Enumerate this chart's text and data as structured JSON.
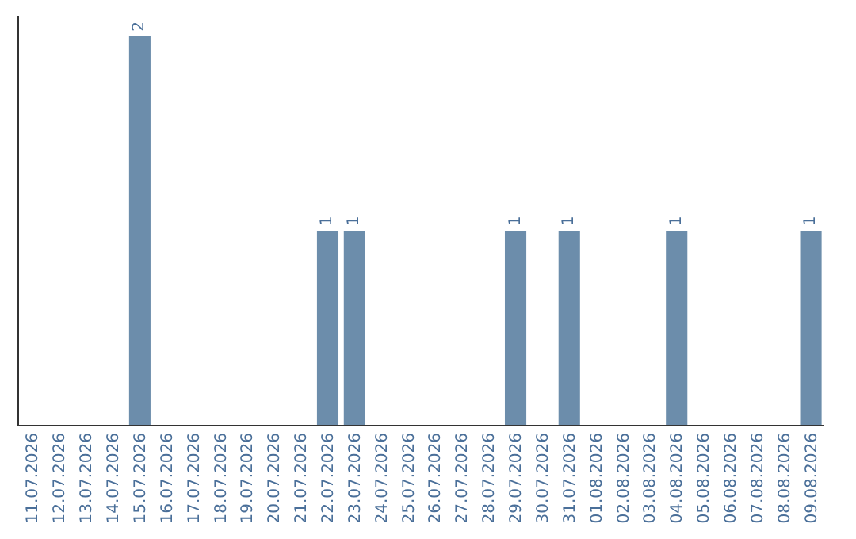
{
  "chart_data": {
    "type": "bar",
    "categories": [
      "11.07.2026",
      "12.07.2026",
      "13.07.2026",
      "14.07.2026",
      "15.07.2026",
      "16.07.2026",
      "17.07.2026",
      "18.07.2026",
      "19.07.2026",
      "20.07.2026",
      "21.07.2026",
      "22.07.2026",
      "23.07.2026",
      "24.07.2026",
      "25.07.2026",
      "26.07.2026",
      "27.07.2026",
      "28.07.2026",
      "29.07.2026",
      "30.07.2026",
      "31.07.2026",
      "01.08.2026",
      "02.08.2026",
      "03.08.2026",
      "04.08.2026",
      "05.08.2026",
      "06.08.2026",
      "07.08.2026",
      "08.08.2026",
      "09.08.2026"
    ],
    "values": [
      0,
      0,
      0,
      0,
      2,
      0,
      0,
      0,
      0,
      0,
      0,
      1,
      1,
      0,
      0,
      0,
      0,
      0,
      1,
      0,
      1,
      0,
      0,
      0,
      1,
      0,
      0,
      0,
      0,
      1
    ],
    "value_labels": [
      null,
      null,
      null,
      null,
      "2",
      null,
      null,
      null,
      null,
      null,
      null,
      "1",
      "1",
      null,
      null,
      null,
      null,
      null,
      "1",
      null,
      "1",
      null,
      null,
      null,
      "1",
      null,
      null,
      null,
      null,
      "1"
    ],
    "color": "#6c8dab",
    "legend": false,
    "tick_labels": "x"
  }
}
